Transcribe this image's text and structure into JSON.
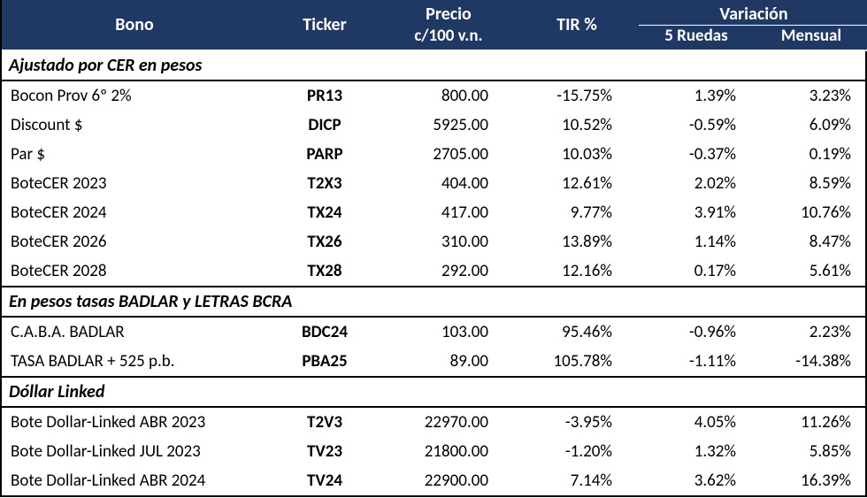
{
  "header": {
    "bg_color": "#1f3864",
    "text_color": "#ffffff",
    "columns": {
      "bono": "Bono",
      "ticker": "Ticker",
      "precio": "Precio c/100 v.n.",
      "precio_line1": "Precio",
      "precio_line2": "c/100 v.n.",
      "tir": "TIR %",
      "variacion_group": "Variación",
      "var_5ruedas": "5 Ruedas",
      "var_mensual": "Mensual"
    },
    "font_size_main": 20,
    "font_size_sub": 19
  },
  "section_style": {
    "font_weight": "bold",
    "font_style": "italic",
    "border_color": "#000000",
    "font_size": 20
  },
  "body_style": {
    "font_size": 19,
    "text_color": "#000000",
    "background_color": "#ffffff"
  },
  "column_widths": {
    "bono": 300,
    "ticker": 130,
    "precio": 150,
    "tir": 140,
    "var5": 130,
    "varM": 130
  },
  "sections": [
    {
      "title": "Ajustado por CER en pesos",
      "rows": [
        {
          "bono": "Bocon Prov 6º 2%",
          "ticker": "PR13",
          "precio": "800.00",
          "tir": "-15.75%",
          "var5": "1.39%",
          "varM": "3.23%"
        },
        {
          "bono": "Discount $",
          "ticker": "DICP",
          "precio": "5925.00",
          "tir": "10.52%",
          "var5": "-0.59%",
          "varM": "6.09%"
        },
        {
          "bono": "Par $",
          "ticker": "PARP",
          "precio": "2705.00",
          "tir": "10.03%",
          "var5": "-0.37%",
          "varM": "0.19%"
        },
        {
          "bono": "BoteCER 2023",
          "ticker": "T2X3",
          "precio": "404.00",
          "tir": "12.61%",
          "var5": "2.02%",
          "varM": "8.59%"
        },
        {
          "bono": "BoteCER 2024",
          "ticker": "TX24",
          "precio": "417.00",
          "tir": "9.77%",
          "var5": "3.91%",
          "varM": "10.76%"
        },
        {
          "bono": "BoteCER 2026",
          "ticker": "TX26",
          "precio": "310.00",
          "tir": "13.89%",
          "var5": "1.14%",
          "varM": "8.47%"
        },
        {
          "bono": "BoteCER 2028",
          "ticker": "TX28",
          "precio": "292.00",
          "tir": "12.16%",
          "var5": "0.17%",
          "varM": "5.61%"
        }
      ]
    },
    {
      "title": "En pesos tasas BADLAR y LETRAS BCRA",
      "rows": [
        {
          "bono": "C.A.B.A. BADLAR",
          "ticker": "BDC24",
          "precio": "103.00",
          "tir": "95.46%",
          "var5": "-0.96%",
          "varM": "2.23%"
        },
        {
          "bono": "TASA BADLAR + 525 p.b.",
          "ticker": "PBA25",
          "precio": "89.00",
          "tir": "105.78%",
          "var5": "-1.11%",
          "varM": "-14.38%"
        }
      ]
    },
    {
      "title": "Dóllar Linked",
      "rows": [
        {
          "bono": "Bote Dollar-Linked   ABR 2023",
          "ticker": "T2V3",
          "precio": "22970.00",
          "tir": "-3.95%",
          "var5": "4.05%",
          "varM": "11.26%"
        },
        {
          "bono": "Bote Dollar-Linked JUL 2023",
          "ticker": "TV23",
          "precio": "21800.00",
          "tir": "-1.20%",
          "var5": "1.32%",
          "varM": "5.85%"
        },
        {
          "bono": "Bote Dollar-Linked ABR 2024",
          "ticker": "TV24",
          "precio": "22900.00",
          "tir": "7.14%",
          "var5": "3.62%",
          "varM": "16.39%"
        }
      ]
    }
  ]
}
